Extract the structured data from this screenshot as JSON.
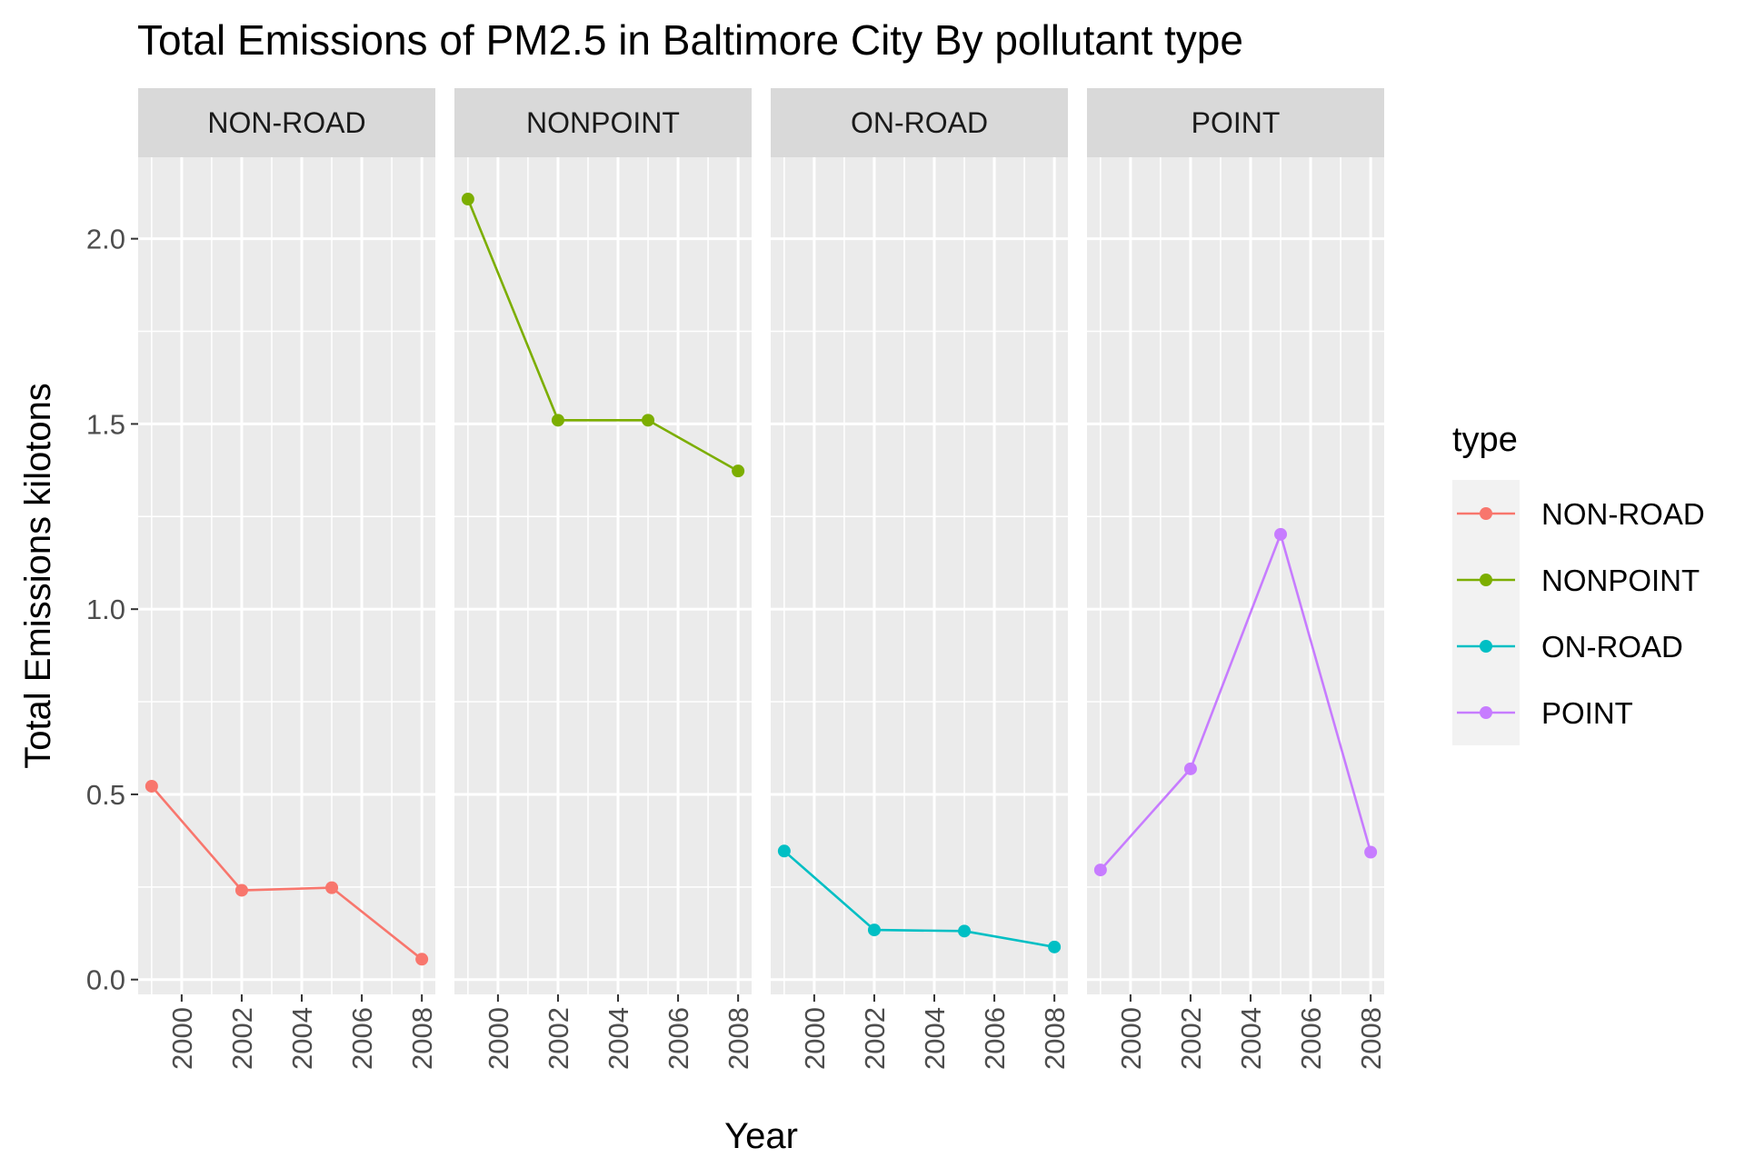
{
  "chart_data": {
    "type": "line",
    "title": "Total Emissions of PM2.5 in Baltimore City By pollutant type",
    "xlabel": "Year",
    "ylabel": "Total Emissions kilotons",
    "x": [
      1999,
      2002,
      2005,
      2008
    ],
    "x_ticks": [
      "2000",
      "2002",
      "2004",
      "2006",
      "2008"
    ],
    "y_ticks": [
      "0.0",
      "0.5",
      "1.0",
      "1.5",
      "2.0"
    ],
    "ylim": [
      -0.04,
      2.22
    ],
    "xlim": [
      1998.55,
      2008.45
    ],
    "grid": true,
    "facet_by": "type",
    "legend": {
      "title": "type",
      "position": "right"
    },
    "series": [
      {
        "name": "NON-ROAD",
        "color": "#F8766D",
        "values": [
          0.522,
          0.241,
          0.248,
          0.055
        ]
      },
      {
        "name": "NONPOINT",
        "color": "#7CAE00",
        "values": [
          2.107,
          1.51,
          1.51,
          1.373
        ]
      },
      {
        "name": "ON-ROAD",
        "color": "#00BFC4",
        "values": [
          0.347,
          0.134,
          0.131,
          0.088
        ]
      },
      {
        "name": "POINT",
        "color": "#C77CFF",
        "values": [
          0.296,
          0.569,
          1.202,
          0.344
        ]
      }
    ]
  }
}
